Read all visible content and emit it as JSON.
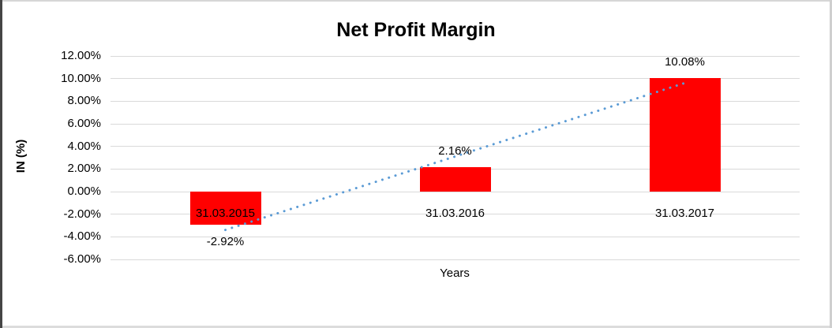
{
  "chart_data": {
    "type": "bar",
    "title": "Net Profit Margin",
    "xlabel": "Years",
    "ylabel": "IN (%)",
    "categories": [
      "31.03.2015",
      "31.03.2016",
      "31.03.2017"
    ],
    "values": [
      -2.92,
      2.16,
      10.08
    ],
    "data_labels": [
      "-2.92%",
      "2.16%",
      "10.08%"
    ],
    "y_ticks": [
      {
        "value": 12,
        "label": "12.00%"
      },
      {
        "value": 10,
        "label": "10.00%"
      },
      {
        "value": 8,
        "label": "8.00%"
      },
      {
        "value": 6,
        "label": "6.00%"
      },
      {
        "value": 4,
        "label": "4.00%"
      },
      {
        "value": 2,
        "label": "2.00%"
      },
      {
        "value": 0,
        "label": "0.00%"
      },
      {
        "value": -2,
        "label": "-2.00%"
      },
      {
        "value": -4,
        "label": "-4.00%"
      },
      {
        "value": -6,
        "label": "-6.00%"
      }
    ],
    "ylim": [
      -6,
      12
    ],
    "grid": true,
    "legend": false,
    "bar_color": "#FF0000",
    "gridline_color": "#D9D9D9",
    "text_color": "#000000",
    "trendline": {
      "type": "linear",
      "style": "dotted",
      "color": "#5B9BD5"
    }
  }
}
